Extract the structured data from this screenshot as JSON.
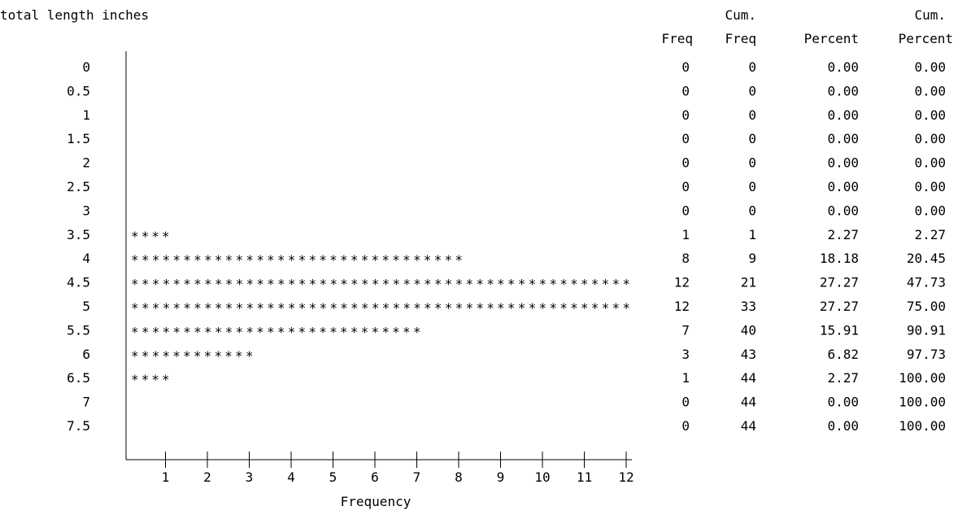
{
  "chart_data": {
    "type": "bar",
    "orientation": "horizontal",
    "style": "asterisk text bars",
    "ylabel": "total length inches",
    "xlabel": "Frequency",
    "categories": [
      "0",
      "0.5",
      "1",
      "1.5",
      "2",
      "2.5",
      "3",
      "3.5",
      "4",
      "4.5",
      "5",
      "5.5",
      "6",
      "6.5",
      "7",
      "7.5"
    ],
    "values": [
      0,
      0,
      0,
      0,
      0,
      0,
      0,
      1,
      8,
      12,
      12,
      7,
      3,
      1,
      0,
      0
    ],
    "x_ticks": [
      "1",
      "2",
      "3",
      "4",
      "5",
      "6",
      "7",
      "8",
      "9",
      "10",
      "11",
      "12"
    ],
    "xlim": [
      0,
      12
    ],
    "bar_symbol": "*",
    "symbols_per_unit": 4,
    "grid": false,
    "legend": "none",
    "stats_table": {
      "header_top": [
        "",
        "Cum.",
        "",
        "Cum."
      ],
      "header_bottom": [
        "Freq",
        "Freq",
        "Percent",
        "Percent"
      ],
      "rows": [
        [
          "0",
          "0",
          "0.00",
          "0.00"
        ],
        [
          "0",
          "0",
          "0.00",
          "0.00"
        ],
        [
          "0",
          "0",
          "0.00",
          "0.00"
        ],
        [
          "0",
          "0",
          "0.00",
          "0.00"
        ],
        [
          "0",
          "0",
          "0.00",
          "0.00"
        ],
        [
          "0",
          "0",
          "0.00",
          "0.00"
        ],
        [
          "0",
          "0",
          "0.00",
          "0.00"
        ],
        [
          "1",
          "1",
          "2.27",
          "2.27"
        ],
        [
          "8",
          "9",
          "18.18",
          "20.45"
        ],
        [
          "12",
          "21",
          "27.27",
          "47.73"
        ],
        [
          "12",
          "33",
          "27.27",
          "75.00"
        ],
        [
          "7",
          "40",
          "15.91",
          "90.91"
        ],
        [
          "3",
          "43",
          "6.82",
          "97.73"
        ],
        [
          "1",
          "44",
          "2.27",
          "100.00"
        ],
        [
          "0",
          "44",
          "0.00",
          "100.00"
        ],
        [
          "0",
          "44",
          "0.00",
          "100.00"
        ]
      ]
    }
  }
}
